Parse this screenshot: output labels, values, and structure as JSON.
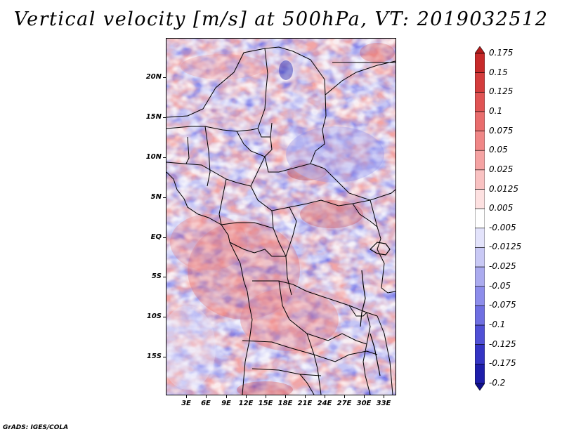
{
  "title": "Vertical velocity [m/s] at 500hPa, VT: 2019032512",
  "footer": "GrADS: IGES/COLA",
  "lat_labels": [
    "20N",
    "15N",
    "10N",
    "5N",
    "EQ",
    "5S",
    "10S",
    "15S"
  ],
  "lon_labels": [
    "3E",
    "6E",
    "9E",
    "12E",
    "15E",
    "18E",
    "21E",
    "24E",
    "27E",
    "30E",
    "33E"
  ],
  "colorbar": {
    "levels": [
      "0.175",
      "0.15",
      "0.125",
      "0.1",
      "0.075",
      "0.05",
      "0.025",
      "0.0125",
      "0.005",
      "-0.005",
      "-0.0125",
      "-0.025",
      "-0.05",
      "-0.075",
      "-0.1",
      "-0.125",
      "-0.175",
      "-0.2"
    ],
    "colors": [
      "#b41b1b",
      "#c72a2a",
      "#d43c3c",
      "#e05454",
      "#e96d6d",
      "#f08787",
      "#f5a3a3",
      "#f9c2c2",
      "#fde1e1",
      "#ffffff",
      "#e3e3fb",
      "#c9c9f5",
      "#ababef",
      "#8d8deb",
      "#6f6fe2",
      "#5050d6",
      "#3434c4",
      "#1e1eaa",
      "#10108c"
    ]
  }
}
